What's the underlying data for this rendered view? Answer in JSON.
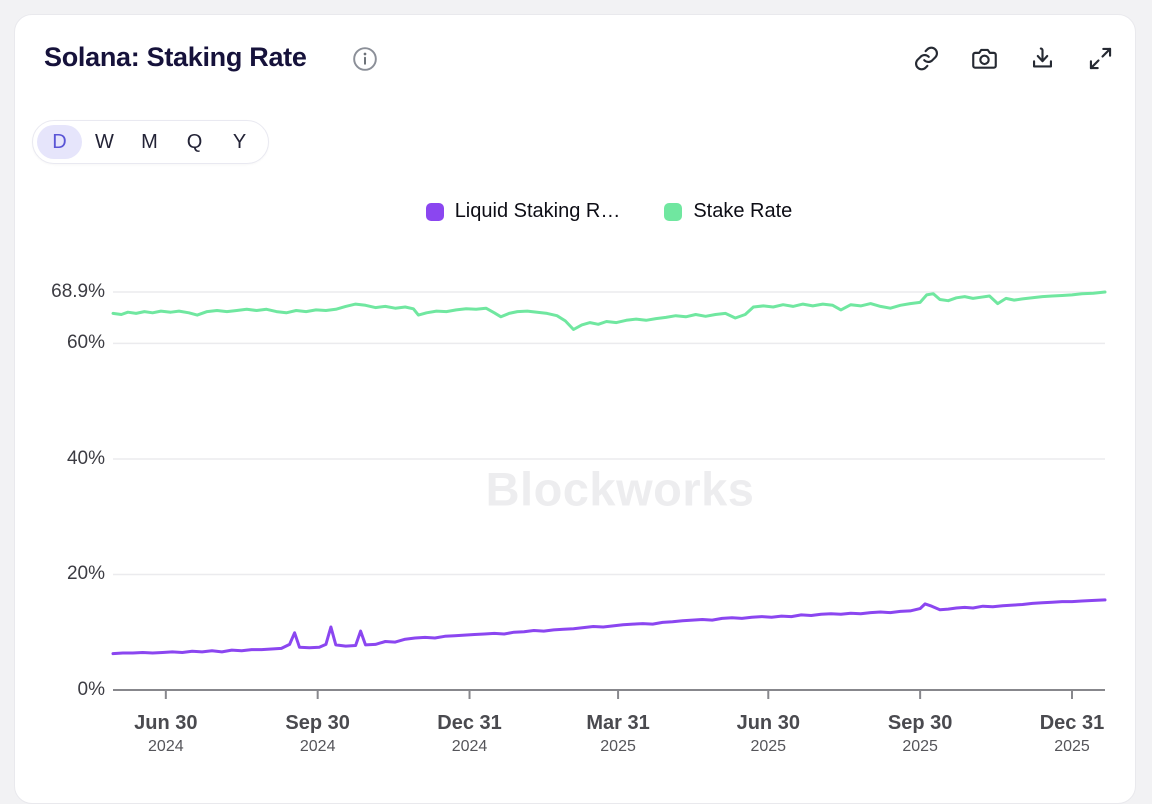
{
  "header": {
    "title": "Solana: Staking Rate",
    "actions": [
      {
        "name": "copy-link",
        "icon": "link-icon"
      },
      {
        "name": "screenshot",
        "icon": "camera-icon"
      },
      {
        "name": "download",
        "icon": "download-icon"
      },
      {
        "name": "expand",
        "icon": "expand-icon"
      }
    ]
  },
  "range_selector": {
    "options": [
      "D",
      "W",
      "M",
      "Q",
      "Y"
    ],
    "active": "D",
    "active_color": "#5a55d6",
    "active_bg": "#e6e5fb"
  },
  "legend": {
    "items": [
      {
        "label": "Liquid Staking R…",
        "color": "#8b46f0"
      },
      {
        "label": "Stake Rate",
        "color": "#70e7a0"
      }
    ]
  },
  "watermark": "Blockworks",
  "chart_data": {
    "type": "line",
    "title": "Solana: Staking Rate",
    "grid": "horizontal",
    "legend_position": "top-center",
    "ylim": [
      0,
      68.9
    ],
    "x_domain": [
      "2024-05-29",
      "2026-01-20"
    ],
    "y_ticks": [
      {
        "value": 68.9,
        "label": "68.9%"
      },
      {
        "value": 60,
        "label": "60%"
      },
      {
        "value": 40,
        "label": "40%"
      },
      {
        "value": 20,
        "label": "20%"
      },
      {
        "value": 0,
        "label": "0%"
      }
    ],
    "x_ticks": [
      {
        "date": "2024-06-30",
        "label": "Jun 30",
        "year": "2024"
      },
      {
        "date": "2024-09-30",
        "label": "Sep 30",
        "year": "2024"
      },
      {
        "date": "2024-12-31",
        "label": "Dec 31",
        "year": "2024"
      },
      {
        "date": "2025-03-31",
        "label": "Mar 31",
        "year": "2025"
      },
      {
        "date": "2025-06-30",
        "label": "Jun 30",
        "year": "2025"
      },
      {
        "date": "2025-09-30",
        "label": "Sep 30",
        "year": "2025"
      },
      {
        "date": "2025-12-31",
        "label": "Dec 31",
        "year": "2025"
      }
    ],
    "series": [
      {
        "name": "Stake Rate",
        "color": "#70e7a0",
        "points": [
          [
            "2024-05-29",
            65.2
          ],
          [
            "2024-06-03",
            65.0
          ],
          [
            "2024-06-07",
            65.4
          ],
          [
            "2024-06-12",
            65.2
          ],
          [
            "2024-06-17",
            65.5
          ],
          [
            "2024-06-22",
            65.3
          ],
          [
            "2024-06-27",
            65.6
          ],
          [
            "2024-07-03",
            65.4
          ],
          [
            "2024-07-08",
            65.6
          ],
          [
            "2024-07-14",
            65.3
          ],
          [
            "2024-07-19",
            64.9
          ],
          [
            "2024-07-25",
            65.5
          ],
          [
            "2024-07-31",
            65.7
          ],
          [
            "2024-08-06",
            65.5
          ],
          [
            "2024-08-12",
            65.7
          ],
          [
            "2024-08-18",
            65.9
          ],
          [
            "2024-08-24",
            65.7
          ],
          [
            "2024-08-30",
            65.9
          ],
          [
            "2024-09-05",
            65.5
          ],
          [
            "2024-09-11",
            65.3
          ],
          [
            "2024-09-17",
            65.7
          ],
          [
            "2024-09-23",
            65.5
          ],
          [
            "2024-09-29",
            65.8
          ],
          [
            "2024-10-05",
            65.7
          ],
          [
            "2024-10-11",
            65.9
          ],
          [
            "2024-10-17",
            66.4
          ],
          [
            "2024-10-23",
            66.8
          ],
          [
            "2024-10-29",
            66.6
          ],
          [
            "2024-11-04",
            66.2
          ],
          [
            "2024-11-10",
            66.4
          ],
          [
            "2024-11-16",
            66.1
          ],
          [
            "2024-11-22",
            66.3
          ],
          [
            "2024-11-27",
            66.0
          ],
          [
            "2024-11-30",
            64.9
          ],
          [
            "2024-12-05",
            65.3
          ],
          [
            "2024-12-11",
            65.6
          ],
          [
            "2024-12-17",
            65.5
          ],
          [
            "2024-12-23",
            65.8
          ],
          [
            "2024-12-29",
            66.0
          ],
          [
            "2025-01-04",
            65.9
          ],
          [
            "2025-01-10",
            66.1
          ],
          [
            "2025-01-15",
            65.3
          ],
          [
            "2025-01-19",
            64.6
          ],
          [
            "2025-01-24",
            65.2
          ],
          [
            "2025-01-29",
            65.5
          ],
          [
            "2025-02-04",
            65.6
          ],
          [
            "2025-02-10",
            65.4
          ],
          [
            "2025-02-16",
            65.2
          ],
          [
            "2025-02-22",
            64.8
          ],
          [
            "2025-02-27",
            63.9
          ],
          [
            "2025-03-04",
            62.4
          ],
          [
            "2025-03-09",
            63.2
          ],
          [
            "2025-03-14",
            63.6
          ],
          [
            "2025-03-19",
            63.3
          ],
          [
            "2025-03-24",
            63.8
          ],
          [
            "2025-03-30",
            63.6
          ],
          [
            "2025-04-05",
            64.0
          ],
          [
            "2025-04-11",
            64.2
          ],
          [
            "2025-04-17",
            64.0
          ],
          [
            "2025-04-23",
            64.3
          ],
          [
            "2025-04-29",
            64.5
          ],
          [
            "2025-05-05",
            64.8
          ],
          [
            "2025-05-11",
            64.6
          ],
          [
            "2025-05-17",
            65.0
          ],
          [
            "2025-05-23",
            64.7
          ],
          [
            "2025-05-29",
            65.0
          ],
          [
            "2025-06-04",
            65.2
          ],
          [
            "2025-06-10",
            64.4
          ],
          [
            "2025-06-16",
            65.0
          ],
          [
            "2025-06-21",
            66.3
          ],
          [
            "2025-06-27",
            66.5
          ],
          [
            "2025-07-03",
            66.3
          ],
          [
            "2025-07-09",
            66.7
          ],
          [
            "2025-07-15",
            66.4
          ],
          [
            "2025-07-21",
            66.8
          ],
          [
            "2025-07-27",
            66.5
          ],
          [
            "2025-08-02",
            66.8
          ],
          [
            "2025-08-08",
            66.6
          ],
          [
            "2025-08-13",
            65.8
          ],
          [
            "2025-08-19",
            66.7
          ],
          [
            "2025-08-25",
            66.5
          ],
          [
            "2025-08-31",
            66.9
          ],
          [
            "2025-09-06",
            66.4
          ],
          [
            "2025-09-12",
            66.1
          ],
          [
            "2025-09-18",
            66.6
          ],
          [
            "2025-09-24",
            66.9
          ],
          [
            "2025-09-30",
            67.1
          ],
          [
            "2025-10-04",
            68.4
          ],
          [
            "2025-10-08",
            68.6
          ],
          [
            "2025-10-12",
            67.6
          ],
          [
            "2025-10-17",
            67.4
          ],
          [
            "2025-10-22",
            67.9
          ],
          [
            "2025-10-27",
            68.1
          ],
          [
            "2025-11-01",
            67.8
          ],
          [
            "2025-11-06",
            68.0
          ],
          [
            "2025-11-11",
            68.2
          ],
          [
            "2025-11-16",
            66.9
          ],
          [
            "2025-11-21",
            67.8
          ],
          [
            "2025-11-26",
            67.5
          ],
          [
            "2025-12-01",
            67.7
          ],
          [
            "2025-12-07",
            67.9
          ],
          [
            "2025-12-13",
            68.1
          ],
          [
            "2025-12-19",
            68.2
          ],
          [
            "2025-12-25",
            68.3
          ],
          [
            "2025-12-31",
            68.4
          ],
          [
            "2026-01-06",
            68.6
          ],
          [
            "2026-01-13",
            68.7
          ],
          [
            "2026-01-20",
            68.9
          ]
        ]
      },
      {
        "name": "Liquid Staking Rate",
        "color": "#8b46f0",
        "points": [
          [
            "2024-05-29",
            6.3
          ],
          [
            "2024-06-04",
            6.4
          ],
          [
            "2024-06-10",
            6.4
          ],
          [
            "2024-06-16",
            6.5
          ],
          [
            "2024-06-22",
            6.4
          ],
          [
            "2024-06-28",
            6.5
          ],
          [
            "2024-07-04",
            6.6
          ],
          [
            "2024-07-10",
            6.5
          ],
          [
            "2024-07-16",
            6.7
          ],
          [
            "2024-07-22",
            6.6
          ],
          [
            "2024-07-28",
            6.8
          ],
          [
            "2024-08-03",
            6.6
          ],
          [
            "2024-08-09",
            6.9
          ],
          [
            "2024-08-15",
            6.8
          ],
          [
            "2024-08-21",
            7.0
          ],
          [
            "2024-08-27",
            7.0
          ],
          [
            "2024-09-02",
            7.1
          ],
          [
            "2024-09-08",
            7.2
          ],
          [
            "2024-09-13",
            7.9
          ],
          [
            "2024-09-16",
            9.9
          ],
          [
            "2024-09-19",
            7.4
          ],
          [
            "2024-09-25",
            7.3
          ],
          [
            "2024-10-01",
            7.4
          ],
          [
            "2024-10-05",
            7.9
          ],
          [
            "2024-10-08",
            10.9
          ],
          [
            "2024-10-11",
            7.8
          ],
          [
            "2024-10-17",
            7.6
          ],
          [
            "2024-10-23",
            7.7
          ],
          [
            "2024-10-26",
            10.2
          ],
          [
            "2024-10-29",
            7.8
          ],
          [
            "2024-11-04",
            7.9
          ],
          [
            "2024-11-10",
            8.4
          ],
          [
            "2024-11-16",
            8.3
          ],
          [
            "2024-11-22",
            8.8
          ],
          [
            "2024-11-28",
            9.0
          ],
          [
            "2024-12-04",
            9.1
          ],
          [
            "2024-12-10",
            9.0
          ],
          [
            "2024-12-16",
            9.3
          ],
          [
            "2024-12-22",
            9.4
          ],
          [
            "2024-12-28",
            9.5
          ],
          [
            "2025-01-03",
            9.6
          ],
          [
            "2025-01-09",
            9.7
          ],
          [
            "2025-01-15",
            9.8
          ],
          [
            "2025-01-21",
            9.7
          ],
          [
            "2025-01-27",
            10.0
          ],
          [
            "2025-02-02",
            10.1
          ],
          [
            "2025-02-08",
            10.3
          ],
          [
            "2025-02-14",
            10.2
          ],
          [
            "2025-02-20",
            10.4
          ],
          [
            "2025-02-26",
            10.5
          ],
          [
            "2025-03-04",
            10.6
          ],
          [
            "2025-03-10",
            10.8
          ],
          [
            "2025-03-16",
            11.0
          ],
          [
            "2025-03-22",
            10.9
          ],
          [
            "2025-03-28",
            11.1
          ],
          [
            "2025-04-03",
            11.3
          ],
          [
            "2025-04-09",
            11.4
          ],
          [
            "2025-04-15",
            11.5
          ],
          [
            "2025-04-21",
            11.4
          ],
          [
            "2025-04-27",
            11.7
          ],
          [
            "2025-05-03",
            11.8
          ],
          [
            "2025-05-09",
            12.0
          ],
          [
            "2025-05-15",
            12.1
          ],
          [
            "2025-05-21",
            12.2
          ],
          [
            "2025-05-27",
            12.1
          ],
          [
            "2025-06-02",
            12.4
          ],
          [
            "2025-06-08",
            12.5
          ],
          [
            "2025-06-14",
            12.4
          ],
          [
            "2025-06-20",
            12.6
          ],
          [
            "2025-06-26",
            12.7
          ],
          [
            "2025-07-02",
            12.6
          ],
          [
            "2025-07-08",
            12.8
          ],
          [
            "2025-07-14",
            12.7
          ],
          [
            "2025-07-20",
            13.0
          ],
          [
            "2025-07-26",
            12.9
          ],
          [
            "2025-08-01",
            13.1
          ],
          [
            "2025-08-07",
            13.2
          ],
          [
            "2025-08-13",
            13.1
          ],
          [
            "2025-08-19",
            13.3
          ],
          [
            "2025-08-25",
            13.2
          ],
          [
            "2025-08-31",
            13.4
          ],
          [
            "2025-09-06",
            13.5
          ],
          [
            "2025-09-12",
            13.4
          ],
          [
            "2025-09-18",
            13.6
          ],
          [
            "2025-09-24",
            13.7
          ],
          [
            "2025-09-30",
            14.1
          ],
          [
            "2025-10-03",
            14.9
          ],
          [
            "2025-10-07",
            14.5
          ],
          [
            "2025-10-12",
            13.9
          ],
          [
            "2025-10-17",
            14.0
          ],
          [
            "2025-10-22",
            14.2
          ],
          [
            "2025-10-27",
            14.3
          ],
          [
            "2025-11-01",
            14.2
          ],
          [
            "2025-11-07",
            14.5
          ],
          [
            "2025-11-13",
            14.4
          ],
          [
            "2025-11-19",
            14.6
          ],
          [
            "2025-11-25",
            14.7
          ],
          [
            "2025-12-01",
            14.8
          ],
          [
            "2025-12-07",
            15.0
          ],
          [
            "2025-12-13",
            15.1
          ],
          [
            "2025-12-19",
            15.2
          ],
          [
            "2025-12-25",
            15.3
          ],
          [
            "2025-12-31",
            15.3
          ],
          [
            "2026-01-06",
            15.4
          ],
          [
            "2026-01-12",
            15.5
          ],
          [
            "2026-01-20",
            15.6
          ]
        ]
      }
    ]
  }
}
